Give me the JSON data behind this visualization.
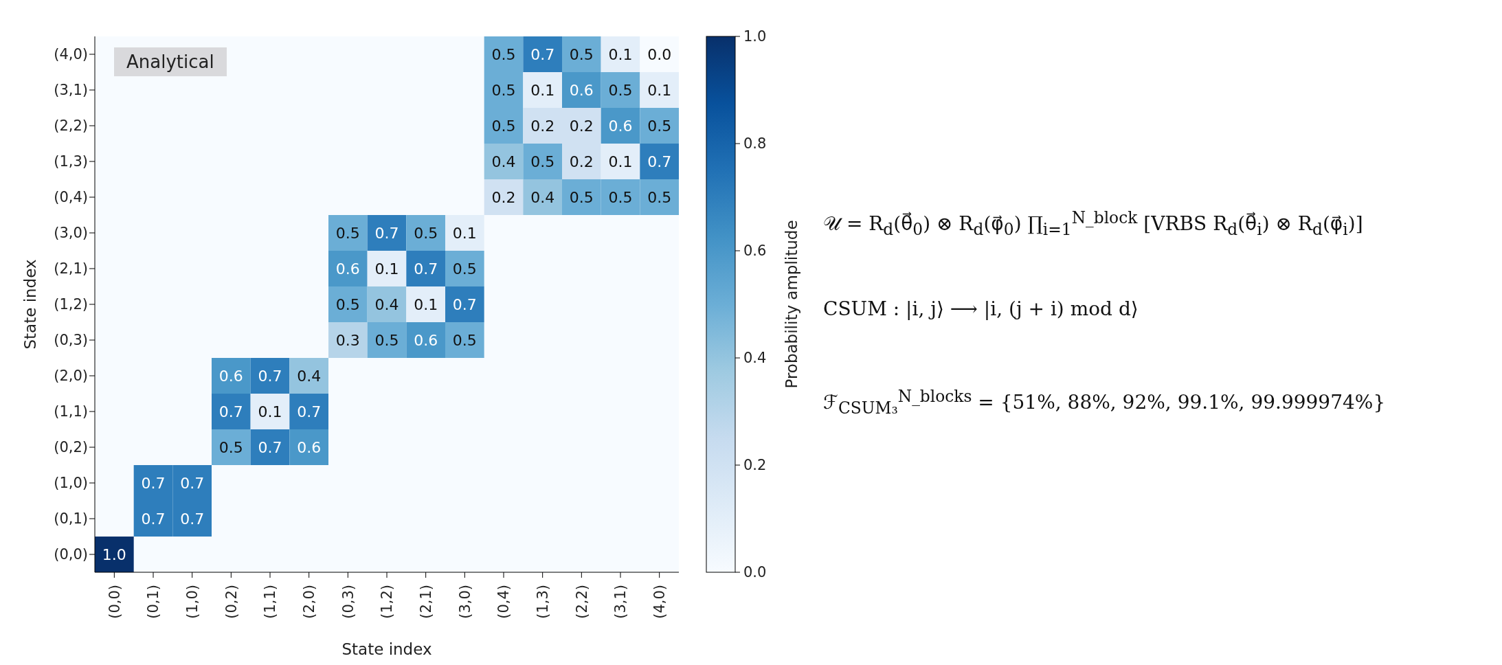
{
  "chart_data": {
    "type": "heatmap",
    "categories": [
      "(0,0)",
      "(0,1)",
      "(1,0)",
      "(0,2)",
      "(1,1)",
      "(2,0)",
      "(0,3)",
      "(1,2)",
      "(2,1)",
      "(3,0)",
      "(0,4)",
      "(1,3)",
      "(2,2)",
      "(3,1)",
      "(4,0)"
    ],
    "y_categories": [
      "(4,0)",
      "(3,1)",
      "(2,2)",
      "(1,3)",
      "(0,4)",
      "(3,0)",
      "(2,1)",
      "(1,2)",
      "(0,3)",
      "(2,0)",
      "(1,1)",
      "(0,2)",
      "(1,0)",
      "(0,1)",
      "(0,0)"
    ],
    "cells": [
      [
        null,
        null,
        null,
        null,
        null,
        null,
        null,
        null,
        null,
        null,
        0.5,
        0.7,
        0.5,
        0.1,
        0.0
      ],
      [
        null,
        null,
        null,
        null,
        null,
        null,
        null,
        null,
        null,
        null,
        0.5,
        0.1,
        0.6,
        0.5,
        0.1
      ],
      [
        null,
        null,
        null,
        null,
        null,
        null,
        null,
        null,
        null,
        null,
        0.5,
        0.2,
        0.2,
        0.6,
        0.5
      ],
      [
        null,
        null,
        null,
        null,
        null,
        null,
        null,
        null,
        null,
        null,
        0.4,
        0.5,
        0.2,
        0.1,
        0.7
      ],
      [
        null,
        null,
        null,
        null,
        null,
        null,
        null,
        null,
        null,
        null,
        0.2,
        0.4,
        0.5,
        0.5,
        0.5
      ],
      [
        null,
        null,
        null,
        null,
        null,
        null,
        0.5,
        0.7,
        0.5,
        0.1,
        null,
        null,
        null,
        null,
        null
      ],
      [
        null,
        null,
        null,
        null,
        null,
        null,
        0.6,
        0.1,
        0.7,
        0.5,
        null,
        null,
        null,
        null,
        null
      ],
      [
        null,
        null,
        null,
        null,
        null,
        null,
        0.5,
        0.4,
        0.1,
        0.7,
        null,
        null,
        null,
        null,
        null
      ],
      [
        null,
        null,
        null,
        null,
        null,
        null,
        0.3,
        0.5,
        0.6,
        0.5,
        null,
        null,
        null,
        null,
        null
      ],
      [
        null,
        null,
        null,
        0.6,
        0.7,
        0.4,
        null,
        null,
        null,
        null,
        null,
        null,
        null,
        null,
        null
      ],
      [
        null,
        null,
        null,
        0.7,
        0.1,
        0.7,
        null,
        null,
        null,
        null,
        null,
        null,
        null,
        null,
        null
      ],
      [
        null,
        null,
        null,
        0.5,
        0.7,
        0.6,
        null,
        null,
        null,
        null,
        null,
        null,
        null,
        null,
        null
      ],
      [
        null,
        0.7,
        0.7,
        null,
        null,
        null,
        null,
        null,
        null,
        null,
        null,
        null,
        null,
        null,
        null
      ],
      [
        null,
        0.7,
        0.7,
        null,
        null,
        null,
        null,
        null,
        null,
        null,
        null,
        null,
        null,
        null,
        null
      ],
      [
        1.0,
        null,
        null,
        null,
        null,
        null,
        null,
        null,
        null,
        null,
        null,
        null,
        null,
        null,
        null
      ]
    ],
    "cell_labels": [
      [
        null,
        null,
        null,
        null,
        null,
        null,
        null,
        null,
        null,
        null,
        "0.5",
        "0.7",
        "0.5",
        "0.1",
        "0.0"
      ],
      [
        null,
        null,
        null,
        null,
        null,
        null,
        null,
        null,
        null,
        null,
        "0.5",
        "0.1",
        "0.6",
        "0.5",
        "0.1"
      ],
      [
        null,
        null,
        null,
        null,
        null,
        null,
        null,
        null,
        null,
        null,
        "0.5",
        "0.2",
        "0.2",
        "0.6",
        "0.5"
      ],
      [
        null,
        null,
        null,
        null,
        null,
        null,
        null,
        null,
        null,
        null,
        "0.4",
        "0.5",
        "0.2",
        "0.1",
        "0.7"
      ],
      [
        null,
        null,
        null,
        null,
        null,
        null,
        null,
        null,
        null,
        null,
        "0.2",
        "0.4",
        "0.5",
        "0.5",
        "0.5"
      ],
      [
        null,
        null,
        null,
        null,
        null,
        null,
        "0.5",
        "0.7",
        "0.5",
        "0.1",
        null,
        null,
        null,
        null,
        null
      ],
      [
        null,
        null,
        null,
        null,
        null,
        null,
        "0.6",
        "0.1",
        "0.7",
        "0.5",
        null,
        null,
        null,
        null,
        null
      ],
      [
        null,
        null,
        null,
        null,
        null,
        null,
        "0.5",
        "0.4",
        "0.1",
        "0.7",
        null,
        null,
        null,
        null,
        null
      ],
      [
        null,
        null,
        null,
        null,
        null,
        null,
        "0.3",
        "0.5",
        "0.6",
        "0.5",
        null,
        null,
        null,
        null,
        null
      ],
      [
        null,
        null,
        null,
        "0.6",
        "0.7",
        "0.4",
        null,
        null,
        null,
        null,
        null,
        null,
        null,
        null,
        null
      ],
      [
        null,
        null,
        null,
        "0.7",
        "0.1",
        "0.7",
        null,
        null,
        null,
        null,
        null,
        null,
        null,
        null,
        null
      ],
      [
        null,
        null,
        null,
        "0.5",
        "0.7",
        "0.6",
        null,
        null,
        null,
        null,
        null,
        null,
        null,
        null,
        null
      ],
      [
        null,
        "0.7",
        "0.7",
        null,
        null,
        null,
        null,
        null,
        null,
        null,
        null,
        null,
        null,
        null,
        null
      ],
      [
        null,
        "0.7",
        "0.7",
        null,
        null,
        null,
        null,
        null,
        null,
        null,
        null,
        null,
        null,
        null,
        null
      ],
      [
        "1.0",
        null,
        null,
        null,
        null,
        null,
        null,
        null,
        null,
        null,
        null,
        null,
        null,
        null,
        null
      ]
    ],
    "clim": [
      0,
      1
    ],
    "cticks": [
      {
        "value": 0,
        "label": "0.0"
      },
      {
        "value": 0.2,
        "label": "0.2"
      },
      {
        "value": 0.4,
        "label": "0.4"
      },
      {
        "value": 0.6,
        "label": "0.6"
      },
      {
        "value": 0.8,
        "label": "0.8"
      },
      {
        "value": 1,
        "label": "1.0"
      }
    ],
    "clabel": "Probability amplitude",
    "xlabel": "State index",
    "ylabel": "State index",
    "annotations": [
      "Analytical",
      "𝒰 = R$_{d}$(θ⃗$_{0}$) ⊗ R$_{d}$(φ⃗$_{0}$) ∏$_{i=1}$$^{N_block}$ [VRBS R$_{d}$(θ⃗$_{i}$) ⊗ R$_{d}$(φ⃗$_{i}$)]",
      "CSUM :   |i, j⟩  ⟶  |i, (j + i) mod d⟩",
      "ℱ$_{CSUM₃}$$^{N_blocks}$ = {51%, 88%, 92%, 99.1%, 99.999974%}"
    ]
  }
}
